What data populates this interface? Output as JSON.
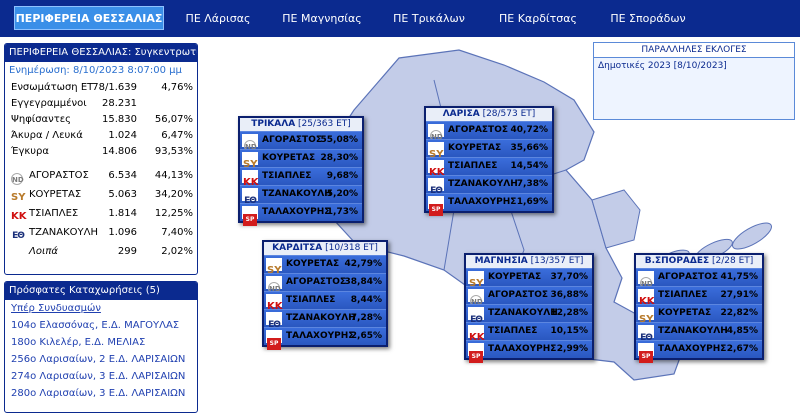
{
  "nav": {
    "tabs": [
      {
        "label": "ΠΕΡΙΦΕΡΕΙΑ ΘΕΣΣΑΛΙΑΣ",
        "active": true
      },
      {
        "label": "ΠΕ Λάρισας"
      },
      {
        "label": "ΠΕ Μαγνησίας"
      },
      {
        "label": "ΠΕ Τρικάλων"
      },
      {
        "label": "ΠΕ Καρδίτσας"
      },
      {
        "label": "ΠΕ Σποράδων"
      }
    ]
  },
  "summary": {
    "title": "ΠΕΡΙΦΕΡΕΙΑ ΘΕΣΣΑΛΙΑΣ: Συγκεντρωτικά",
    "updated": "Ενημέρωση: 8/10/2023 8:07:00 μμ",
    "stats": [
      {
        "label": "Ενσωμάτωση ΕΤ",
        "v1": "78/1.639",
        "v2": "4,76%"
      },
      {
        "label": "Εγγεγραμμένοι",
        "v1": "28.231",
        "v2": ""
      },
      {
        "label": "Ψηφίσαντες",
        "v1": "15.830",
        "v2": "56,07%"
      },
      {
        "label": "Άκυρα / Λευκά",
        "v1": "1.024",
        "v2": "6,47%"
      },
      {
        "label": "Έγκυρα",
        "v1": "14.806",
        "v2": "93,53%"
      }
    ],
    "candidates": [
      {
        "logo": "ND",
        "name": "ΑΓΟΡΑΣΤΟΣ",
        "votes": "6.534",
        "pct": "44,13%"
      },
      {
        "logo": "SY",
        "name": "ΚΟΥΡΕΤΑΣ",
        "votes": "5.063",
        "pct": "34,20%"
      },
      {
        "logo": "KK",
        "name": "ΤΣΙΑΠΛΕΣ",
        "votes": "1.814",
        "pct": "12,25%"
      },
      {
        "logo": "ΕΘ",
        "name": "ΤΖΑΝΑΚΟΥΛΗ",
        "votes": "1.096",
        "pct": "7,40%"
      },
      {
        "logo": "",
        "name": "Λοιπά",
        "votes": "299",
        "pct": "2,02%"
      }
    ]
  },
  "recent": {
    "title": "Πρόσφατες Καταχωρήσεις (5)",
    "subtitle": "Υπέρ Συνδυασμών",
    "items": [
      "104ο Ελασσόνας, Ε.Δ. ΜΑΓΟΥΛΑΣ",
      "180ο Κιλελέρ, Ε.Δ. ΜΕΛΙΑΣ",
      "256ο Λαρισαίων, 2 Ε.Δ. ΛΑΡΙΣΑΙΩΝ",
      "274ο Λαρισαίων, 3 Ε.Δ. ΛΑΡΙΣΑΙΩΝ",
      "280ο Λαρισαίων, 3 Ε.Δ. ΛΑΡΙΣΑΙΩΝ"
    ]
  },
  "parallel": {
    "title": "ΠΑΡΑΛΛΗΛΕΣ ΕΚΛΟΓΕΣ",
    "item": "Δημοτικές 2023 [8/10/2023]"
  },
  "cards": [
    {
      "name": "ΤΡΙΚΑΛΑ",
      "counts": "[25/363 ET]",
      "rows": [
        {
          "logo": "ND",
          "name": "ΑΓΟΡΑΣΤΟΣ",
          "pct": "55,08%"
        },
        {
          "logo": "SY",
          "name": "ΚΟΥΡΕΤΑΣ",
          "pct": "28,30%"
        },
        {
          "logo": "KK",
          "name": "ΤΣΙΑΠΛΕΣ",
          "pct": "9,68%"
        },
        {
          "logo": "ΕΘ",
          "name": "ΤΖΑΝΑΚΟΥΛΗ",
          "pct": "5,20%"
        },
        {
          "logo": "SP",
          "name": "ΤΑΛΑΧΟΥΡΗΣ",
          "pct": "1,73%"
        }
      ]
    },
    {
      "name": "ΛΑΡΙΣΑ",
      "counts": "[28/573 ET]",
      "rows": [
        {
          "logo": "ND",
          "name": "ΑΓΟΡΑΣΤΟΣ",
          "pct": "40,72%"
        },
        {
          "logo": "SY",
          "name": "ΚΟΥΡΕΤΑΣ",
          "pct": "35,66%"
        },
        {
          "logo": "KK",
          "name": "ΤΣΙΑΠΛΕΣ",
          "pct": "14,54%"
        },
        {
          "logo": "ΕΘ",
          "name": "ΤΖΑΝΑΚΟΥΛΗ",
          "pct": "7,38%"
        },
        {
          "logo": "SP",
          "name": "ΤΑΛΑΧΟΥΡΗΣ",
          "pct": "1,69%"
        }
      ]
    },
    {
      "name": "ΚΑΡΔΙΤΣΑ",
      "counts": "[10/318 ET]",
      "rows": [
        {
          "logo": "SY",
          "name": "ΚΟΥΡΕΤΑΣ",
          "pct": "42,79%"
        },
        {
          "logo": "ND",
          "name": "ΑΓΟΡΑΣΤΟΣ",
          "pct": "38,84%"
        },
        {
          "logo": "KK",
          "name": "ΤΣΙΑΠΛΕΣ",
          "pct": "8,44%"
        },
        {
          "logo": "ΕΘ",
          "name": "ΤΖΑΝΑΚΟΥΛΗ",
          "pct": "7,28%"
        },
        {
          "logo": "SP",
          "name": "ΤΑΛΑΧΟΥΡΗΣ",
          "pct": "2,65%"
        }
      ]
    },
    {
      "name": "ΜΑΓΝΗΣΙΑ",
      "counts": "[13/357 ET]",
      "rows": [
        {
          "logo": "SY",
          "name": "ΚΟΥΡΕΤΑΣ",
          "pct": "37,70%"
        },
        {
          "logo": "ND",
          "name": "ΑΓΟΡΑΣΤΟΣ",
          "pct": "36,88%"
        },
        {
          "logo": "ΕΘ",
          "name": "ΤΖΑΝΑΚΟΥΛΗ",
          "pct": "12,28%"
        },
        {
          "logo": "KK",
          "name": "ΤΣΙΑΠΛΕΣ",
          "pct": "10,15%"
        },
        {
          "logo": "SP",
          "name": "ΤΑΛΑΧΟΥΡΗΣ",
          "pct": "2,99%"
        }
      ]
    },
    {
      "name": "Β.ΣΠΟΡΑΔΕΣ",
      "counts": "[2/28 ET]",
      "rows": [
        {
          "logo": "ND",
          "name": "ΑΓΟΡΑΣΤΟΣ",
          "pct": "41,75%"
        },
        {
          "logo": "KK",
          "name": "ΤΣΙΑΠΛΕΣ",
          "pct": "27,91%"
        },
        {
          "logo": "SY",
          "name": "ΚΟΥΡΕΤΑΣ",
          "pct": "22,82%"
        },
        {
          "logo": "ΕΘ",
          "name": "ΤΖΑΝΑΚΟΥΛΗ",
          "pct": "4,85%"
        },
        {
          "logo": "SP",
          "name": "ΤΑΛΑΧΟΥΡΗΣ",
          "pct": "2,67%"
        }
      ]
    }
  ]
}
